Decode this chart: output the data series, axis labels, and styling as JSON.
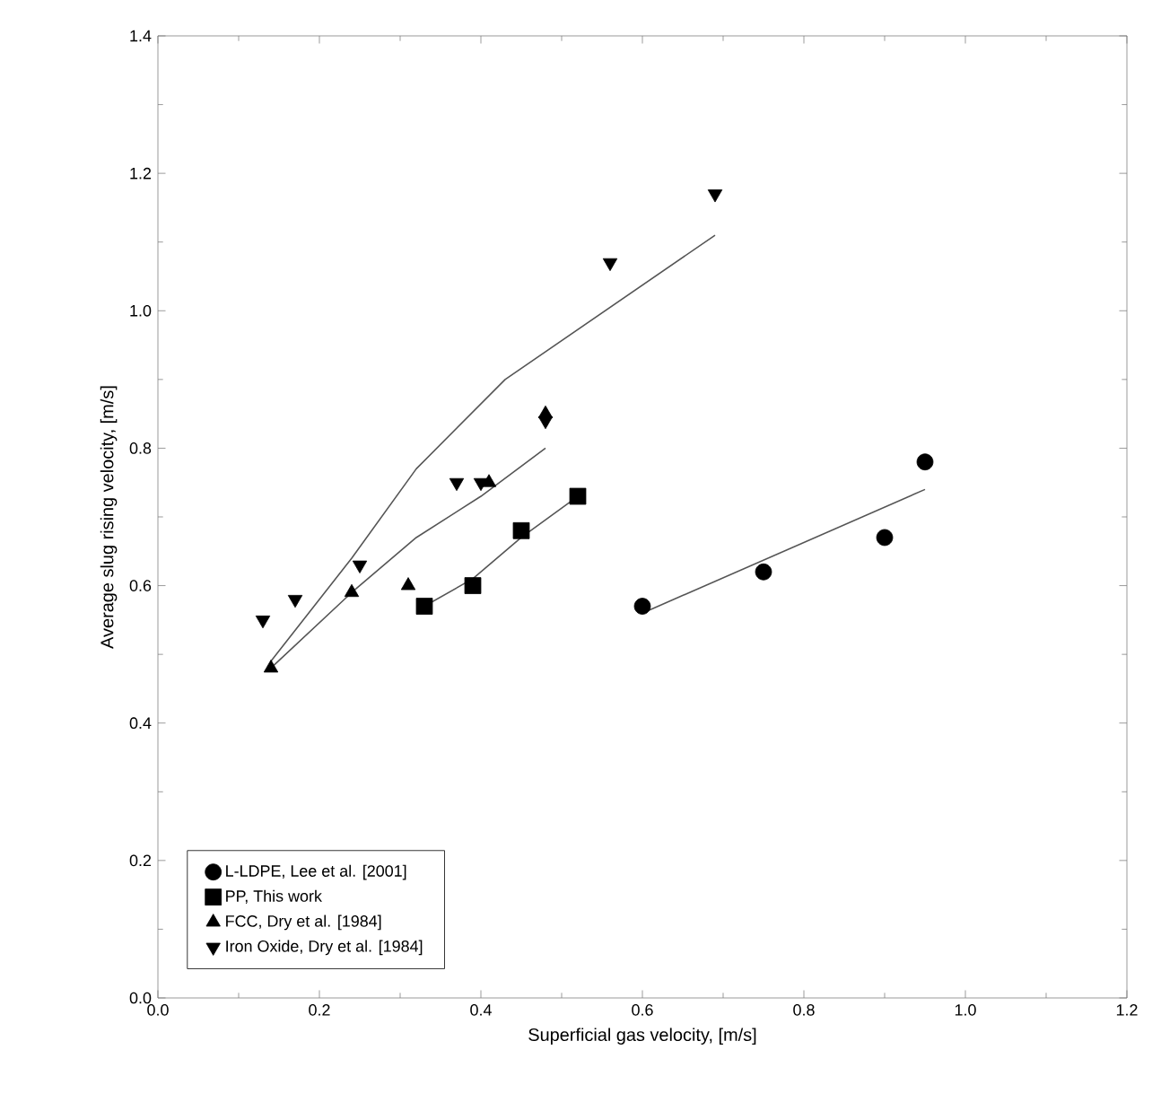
{
  "chart_data": {
    "type": "scatter",
    "xlabel": "Superficial gas velocity, [m/s]",
    "ylabel": "Average slug rising velocity, [m/s]",
    "xlim": [
      0,
      1.2
    ],
    "ylim": [
      0,
      1.4
    ],
    "xticks": [
      {
        "value": 0,
        "label": "0.0"
      },
      {
        "value": 0.2,
        "label": "0.2"
      },
      {
        "value": 0.4,
        "label": "0.4"
      },
      {
        "value": 0.6,
        "label": "0.6"
      },
      {
        "value": 0.8,
        "label": "0.8"
      },
      {
        "value": 1.0,
        "label": "1.0"
      },
      {
        "value": 1.2,
        "label": "1.2"
      }
    ],
    "yticks": [
      {
        "value": 0,
        "label": "0.0"
      },
      {
        "value": 0.2,
        "label": "0.2"
      },
      {
        "value": 0.4,
        "label": "0.4"
      },
      {
        "value": 0.6,
        "label": "0.6"
      },
      {
        "value": 0.8,
        "label": "0.8"
      },
      {
        "value": 1.0,
        "label": "1.0"
      },
      {
        "value": 1.2,
        "label": "1.2"
      },
      {
        "value": 1.4,
        "label": "1.4"
      }
    ],
    "grid": false,
    "legend": "bottom left",
    "series": [
      {
        "name": "L-LDPE, Lee et al. [2001]",
        "color": "#000000",
        "marker": "circle",
        "x": [
          0.6,
          0.75,
          0.9,
          0.95
        ],
        "values": [
          0.57,
          0.62,
          0.67,
          0.78
        ]
      },
      {
        "name": "PP, This work",
        "color": "#000000",
        "marker": "square",
        "x": [
          0.33,
          0.39,
          0.45,
          0.52
        ],
        "values": [
          0.57,
          0.6,
          0.68,
          0.73
        ]
      },
      {
        "name": "FCC, Dry et al. [1984]",
        "color": "#000000",
        "marker": "triangle",
        "x": [
          0.14,
          0.24,
          0.31,
          0.41,
          0.48
        ],
        "values": [
          0.48,
          0.59,
          0.6,
          0.75,
          0.85
        ]
      },
      {
        "name": "Iron Oxide, Dry et al. [1984]",
        "color": "#000000",
        "marker": "triangle down",
        "x": [
          0.13,
          0.17,
          0.25,
          0.37,
          0.4,
          0.48,
          0.56,
          0.69
        ],
        "values": [
          0.55,
          0.58,
          0.63,
          0.75,
          0.75,
          0.84,
          1.07,
          1.17
        ]
      },
      {
        "type": "line",
        "color": "#555555",
        "marker": "none",
        "x": [
          0.6,
          0.95
        ],
        "values": [
          0.56,
          0.74
        ]
      },
      {
        "type": "line",
        "color": "#555555",
        "marker": "none",
        "x": [
          0.33,
          0.39,
          0.45,
          0.52
        ],
        "values": [
          0.57,
          0.61,
          0.67,
          0.73
        ]
      },
      {
        "type": "line",
        "color": "#555555",
        "marker": "none",
        "x": [
          0.14,
          0.24,
          0.32,
          0.4,
          0.48
        ],
        "values": [
          0.48,
          0.59,
          0.67,
          0.73,
          0.8
        ]
      },
      {
        "type": "line",
        "color": "#555555",
        "marker": "none",
        "x": [
          0.14,
          0.24,
          0.32,
          0.43,
          0.69
        ],
        "values": [
          0.49,
          0.64,
          0.77,
          0.9,
          1.11
        ]
      }
    ]
  }
}
